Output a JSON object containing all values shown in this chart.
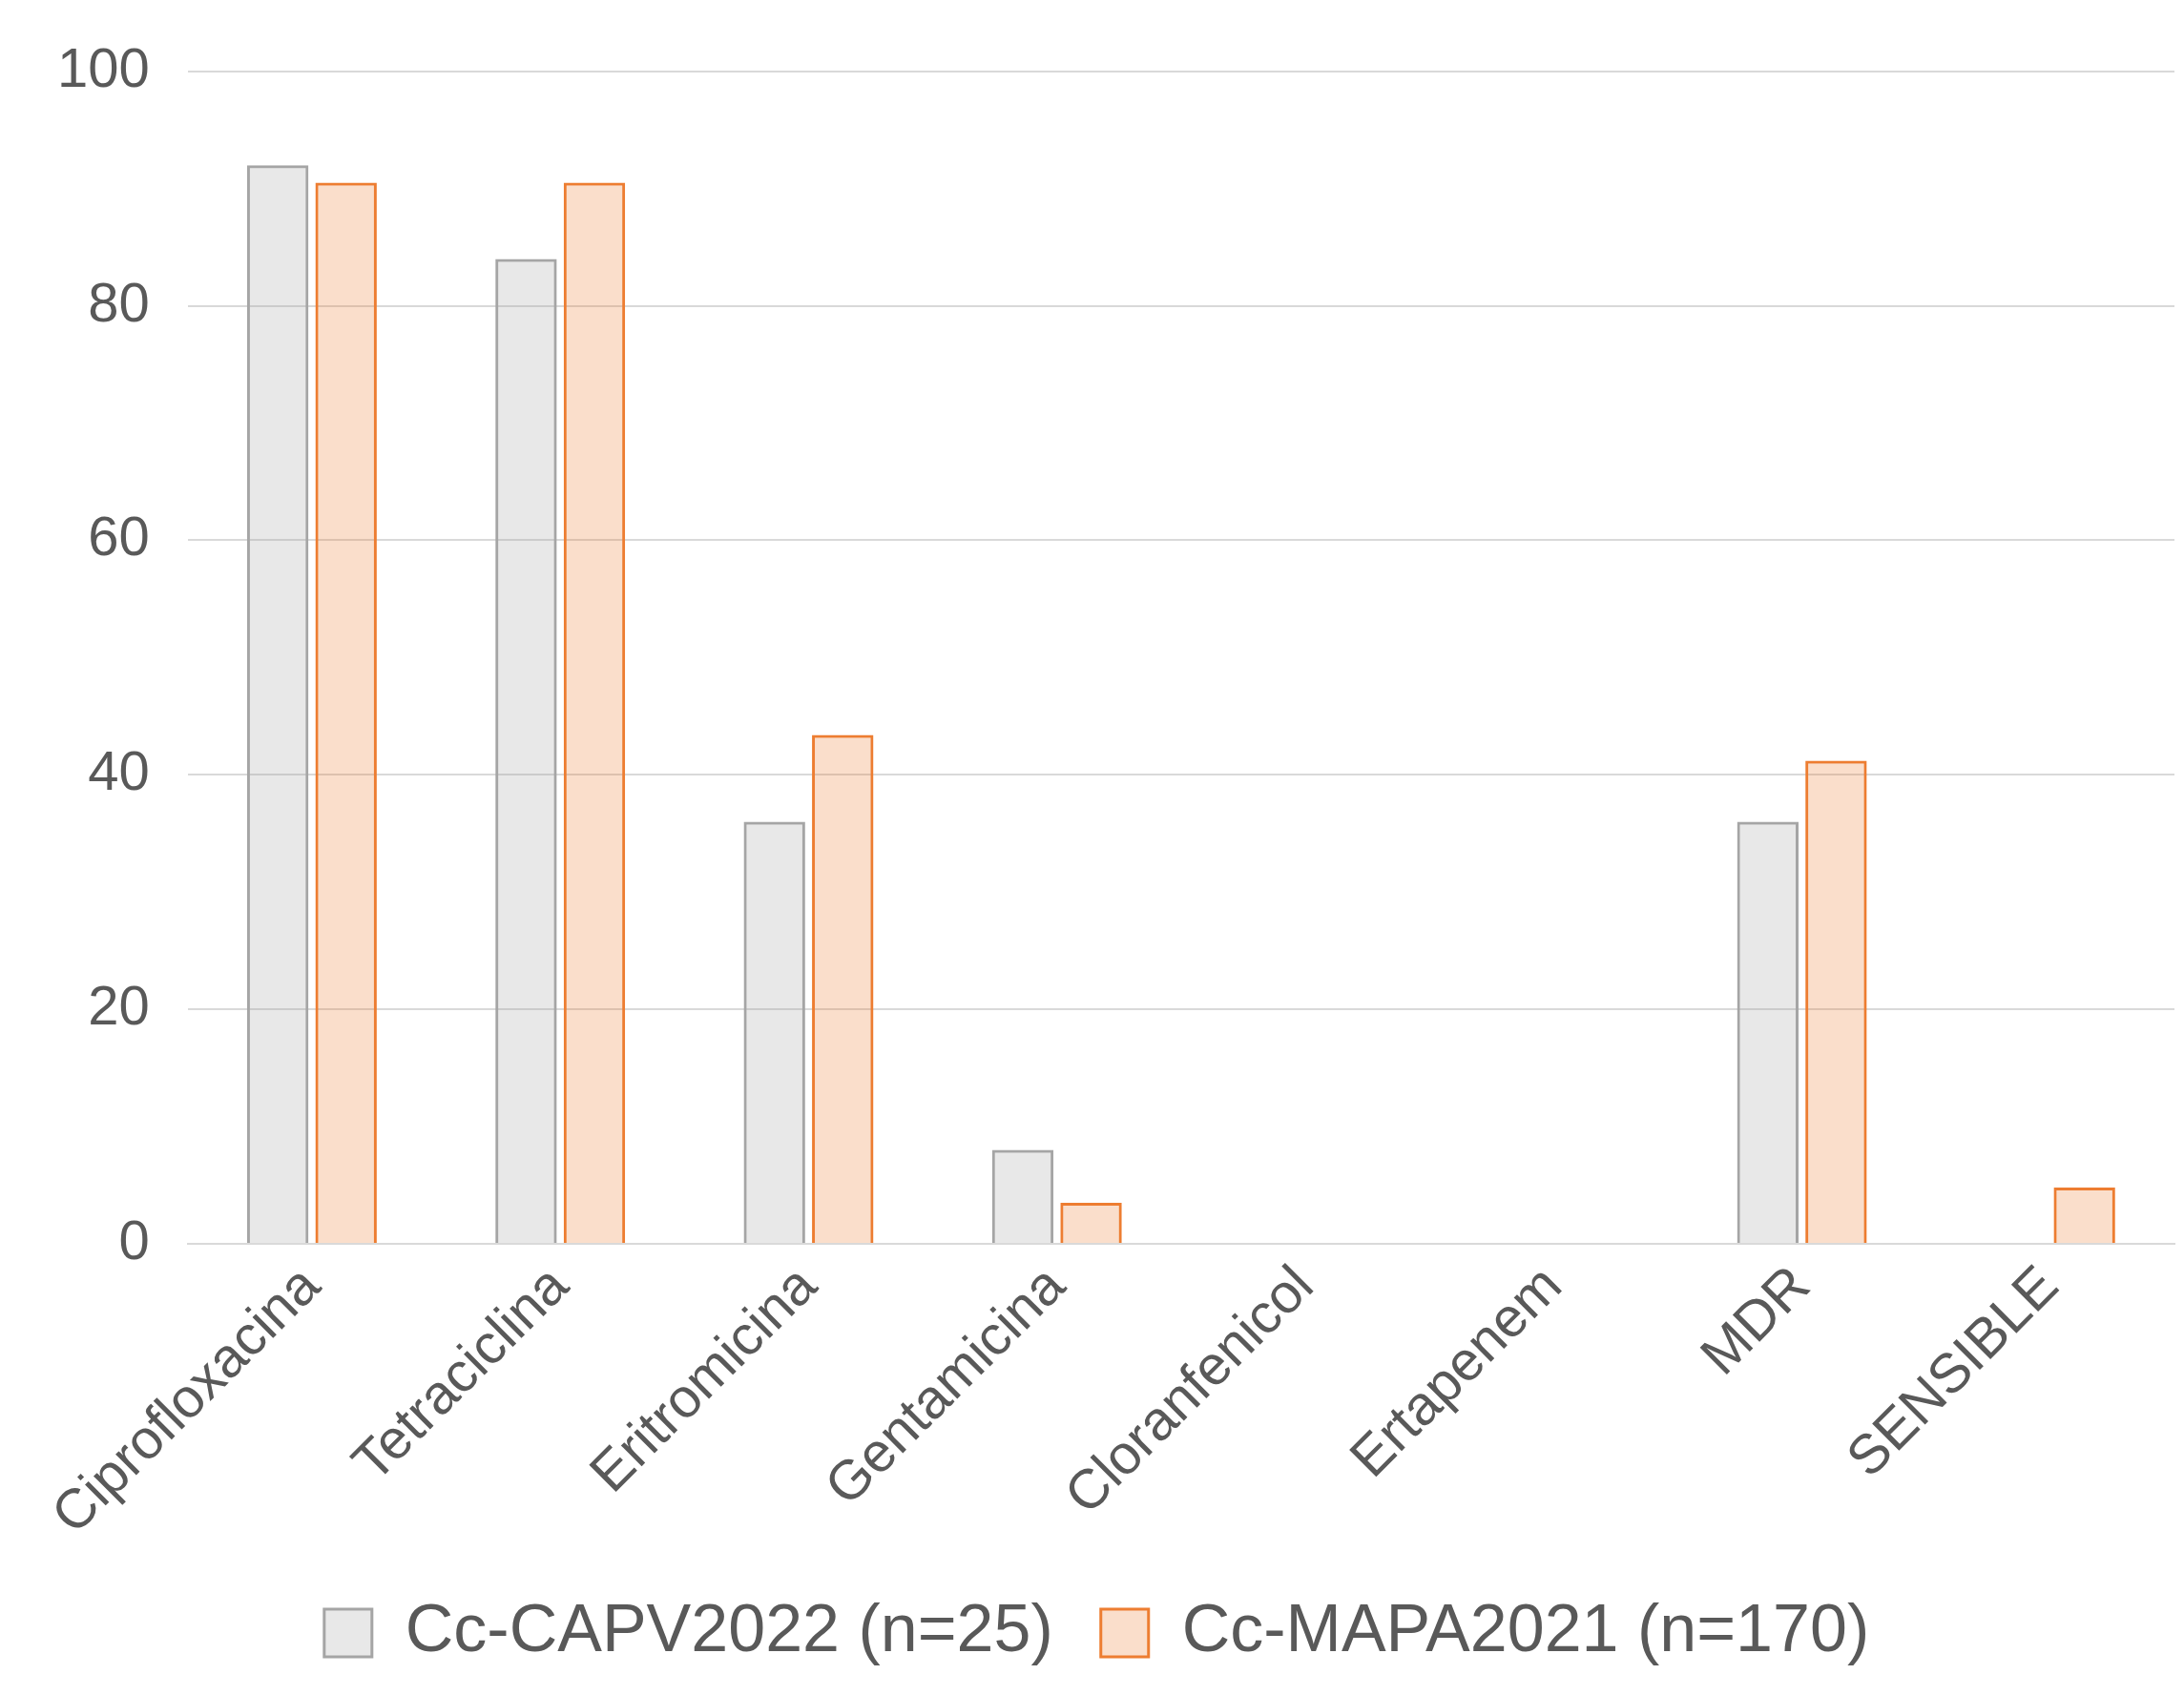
{
  "chart_data": {
    "type": "bar",
    "categories": [
      "Ciprofloxacina",
      "Tetraciclina",
      "Eritromicina",
      "Gentamicina",
      "Cloranfenicol",
      "Ertapenem",
      "MDR",
      "SENSIBLE"
    ],
    "series": [
      {
        "name": "Cc-CAPV2022 (n=25)",
        "color": "#a5a5a5",
        "values": [
          92,
          84,
          36,
          8,
          0,
          0,
          36,
          0
        ]
      },
      {
        "name": "Cc-MAPA2021 (n=170)",
        "color": "#ed7d31",
        "values": [
          90.5,
          90.5,
          43.4,
          3.5,
          0,
          0,
          41.2,
          4.8
        ]
      }
    ],
    "ylim": [
      0,
      100
    ],
    "yticks": [
      0,
      20,
      40,
      60,
      80,
      100
    ],
    "grid": "y",
    "legend": "bottom"
  }
}
